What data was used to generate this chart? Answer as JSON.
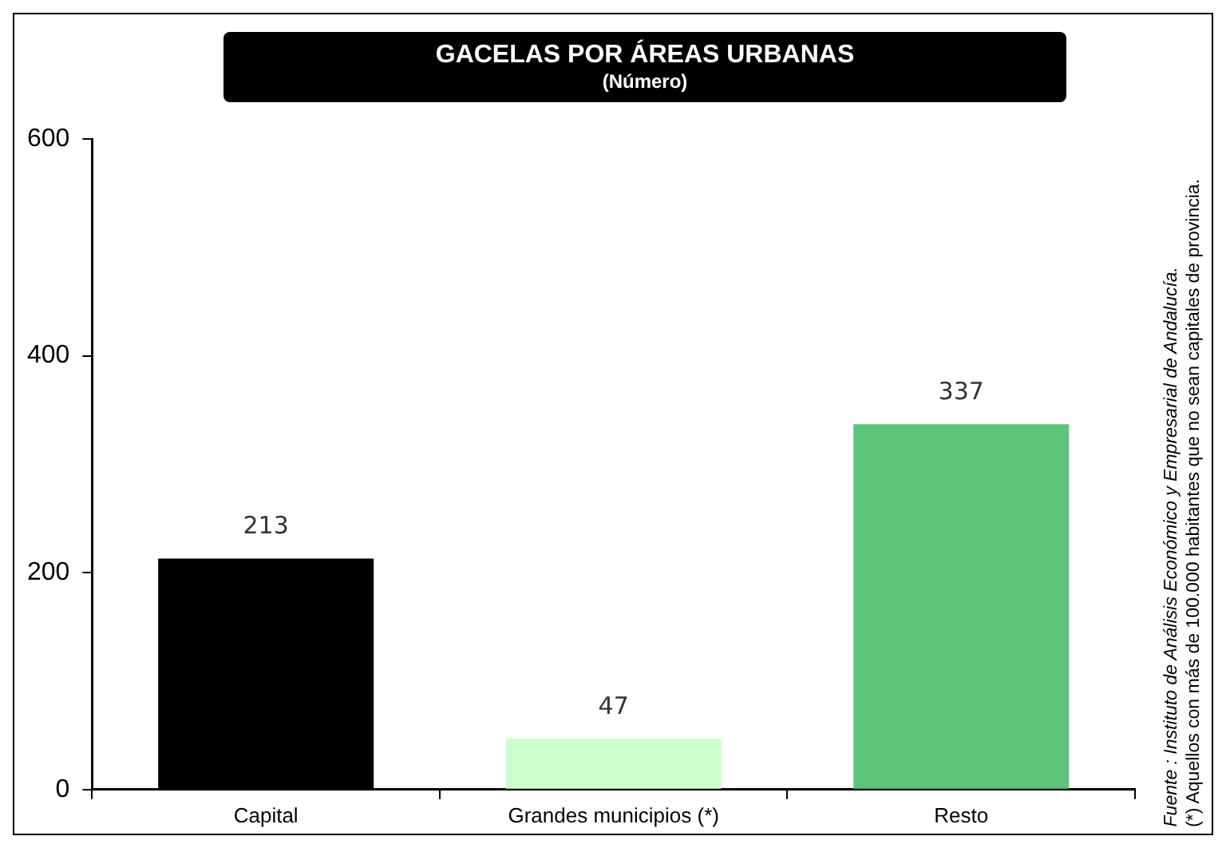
{
  "chart_data": {
    "type": "bar",
    "title": "GACELAS POR ÁREAS URBANAS",
    "subtitle": "(Número)",
    "categories": [
      "Capital",
      "Grandes municipios (*)",
      "Resto"
    ],
    "values": [
      213,
      47,
      337
    ],
    "colors": [
      "#000000",
      "#ccffcc",
      "#5bc47a"
    ],
    "ylim": [
      0,
      600
    ],
    "yticks": [
      0,
      200,
      400,
      600
    ],
    "grid": false,
    "data_labels": true,
    "annotations": [
      "(*) Aquellos con más de 100.000 habitantes que no sean capitales de provincia.",
      "Fuente : Instituto de Análisis Económico y Empresarial de Andalucía."
    ]
  }
}
